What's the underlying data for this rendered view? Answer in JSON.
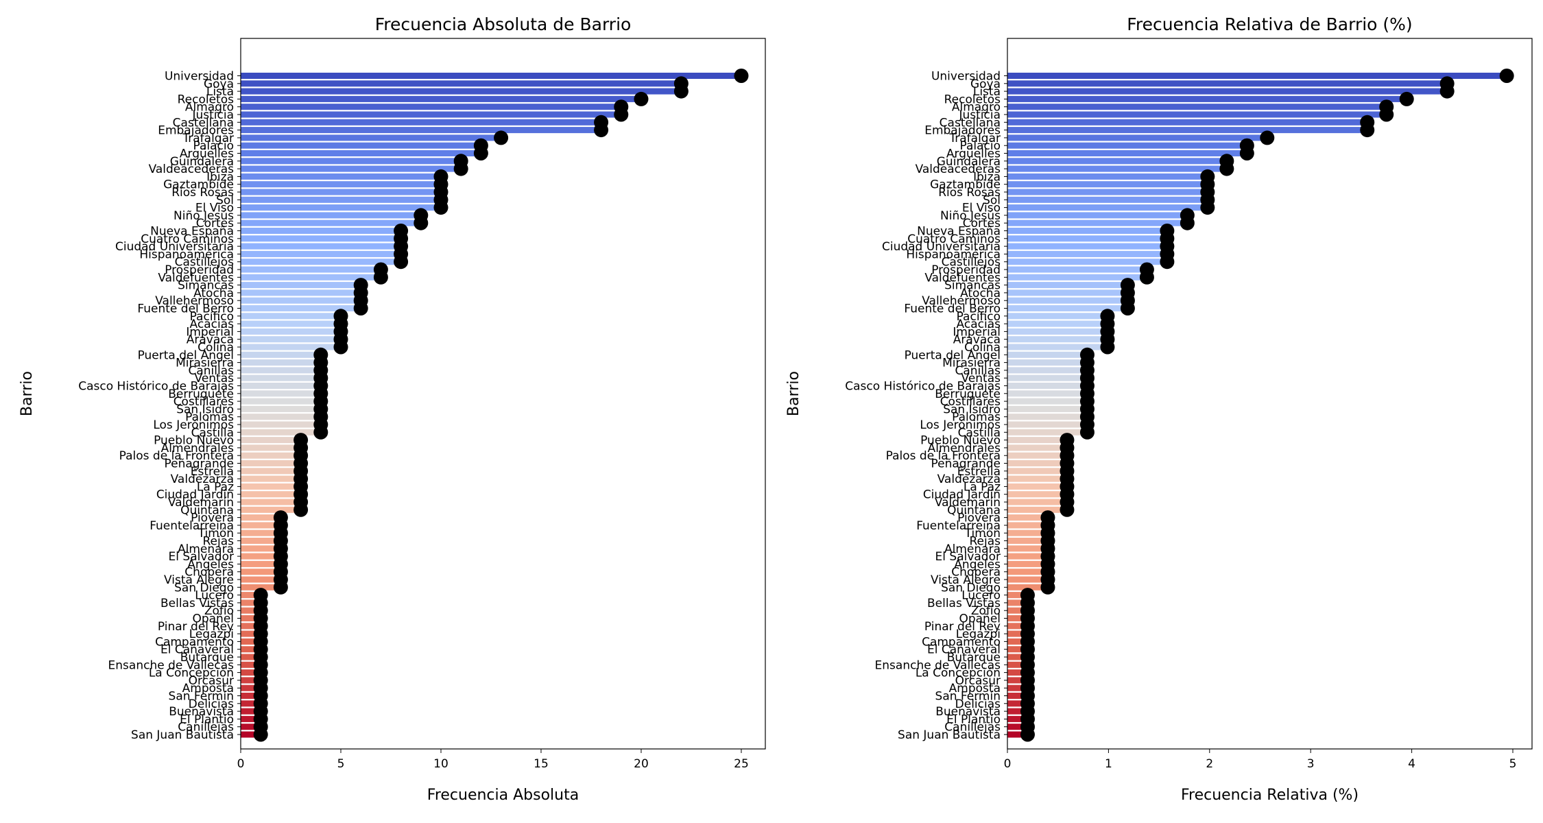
{
  "chart_data": [
    {
      "type": "bar",
      "orientation": "horizontal",
      "marker": "lollipop",
      "title": "Frecuencia Absoluta de Barrio",
      "xlabel": "Frecuencia Absoluta",
      "ylabel": "Barrio",
      "xlim": [
        0,
        26.2
      ],
      "xticks": [
        0,
        5,
        10,
        15,
        20,
        25
      ],
      "tick_labels": [
        "0",
        "5",
        "10",
        "15",
        "20",
        "25"
      ],
      "colormap": "coolwarm",
      "grid": false,
      "categories": [
        "Universidad",
        "Goya",
        "Lista",
        "Recoletos",
        "Almagro",
        "Justicia",
        "Castellana",
        "Embajadores",
        "Trafalgar",
        "Palacio",
        "Argüelles",
        "Guindalera",
        "Valdeacederas",
        "Ibiza",
        "Gaztambide",
        "Ríos Rosas",
        "Sol",
        "El Viso",
        "Niño Jesús",
        "Cortes",
        "Nueva España",
        "Cuatro Caminos",
        "Ciudad Universitaria",
        "Hispanoamérica",
        "Castillejos",
        "Prosperidad",
        "Valdefuentes",
        "Simancas",
        "Atocha",
        "Vallehermoso",
        "Fuente del Berro",
        "Pacífico",
        "Acacias",
        "Imperial",
        "Aravaca",
        "Colina",
        "Puerta del Ángel",
        "Mirasierra",
        "Canillas",
        "Ventas",
        "Casco Histórico de Barajas",
        "Berruguete",
        "Costillares",
        "San Isidro",
        "Palomas",
        "Los Jerónimos",
        "Castilla",
        "Pueblo Nuevo",
        "Almendrales",
        "Palos de la Frontera",
        "Peñagrande",
        "Estrella",
        "Valdezarza",
        "La Paz",
        "Ciudad Jardín",
        "Valdemarín",
        "Quintana",
        "Piovera",
        "Fuentelarreina",
        "Timón",
        "Rejas",
        "Almenara",
        "El Salvador",
        "Ángeles",
        "Chopera",
        "Vista Alegre",
        "San Diego",
        "Lucero",
        "Bellas Vistas",
        "Zofío",
        "Opañel",
        "Pinar del Rey",
        "Legazpi",
        "Campamento",
        "El Cañaveral",
        "Butarque",
        "Ensanche de Vallecas",
        "La Concepción",
        "Orcasur",
        "Amposta",
        "San Fermín",
        "Delicias",
        "Buenavista",
        "El Plantío",
        "Canillejas",
        "San Juan Bautista"
      ],
      "values": [
        25,
        22,
        22,
        20,
        19,
        19,
        18,
        18,
        13,
        12,
        12,
        11,
        11,
        10,
        10,
        10,
        10,
        10,
        9,
        9,
        8,
        8,
        8,
        8,
        8,
        7,
        7,
        6,
        6,
        6,
        6,
        5,
        5,
        5,
        5,
        5,
        4,
        4,
        4,
        4,
        4,
        4,
        4,
        4,
        4,
        4,
        4,
        3,
        3,
        3,
        3,
        3,
        3,
        3,
        3,
        3,
        3,
        2,
        2,
        2,
        2,
        2,
        2,
        2,
        2,
        2,
        2,
        1,
        1,
        1,
        1,
        1,
        1,
        1,
        1,
        1,
        1,
        1,
        1,
        1,
        1,
        1,
        1,
        1,
        1,
        1
      ]
    },
    {
      "type": "bar",
      "orientation": "horizontal",
      "marker": "lollipop",
      "title": "Frecuencia Relativa de Barrio (%)",
      "xlabel": "Frecuencia Relativa (%)",
      "ylabel": "Barrio",
      "xlim": [
        0,
        5.19
      ],
      "xticks": [
        0,
        1,
        2,
        3,
        4,
        5
      ],
      "tick_labels": [
        "0",
        "1",
        "2",
        "3",
        "4",
        "5"
      ],
      "colormap": "coolwarm",
      "grid": false,
      "categories": [
        "Universidad",
        "Goya",
        "Lista",
        "Recoletos",
        "Almagro",
        "Justicia",
        "Castellana",
        "Embajadores",
        "Trafalgar",
        "Palacio",
        "Argüelles",
        "Guindalera",
        "Valdeacederas",
        "Ibiza",
        "Gaztambide",
        "Ríos Rosas",
        "Sol",
        "El Viso",
        "Niño Jesús",
        "Cortes",
        "Nueva España",
        "Cuatro Caminos",
        "Ciudad Universitaria",
        "Hispanoamérica",
        "Castillejos",
        "Prosperidad",
        "Valdefuentes",
        "Simancas",
        "Atocha",
        "Vallehermoso",
        "Fuente del Berro",
        "Pacífico",
        "Acacias",
        "Imperial",
        "Aravaca",
        "Colina",
        "Puerta del Ángel",
        "Mirasierra",
        "Canillas",
        "Ventas",
        "Casco Histórico de Barajas",
        "Berruguete",
        "Costillares",
        "San Isidro",
        "Palomas",
        "Los Jerónimos",
        "Castilla",
        "Pueblo Nuevo",
        "Almendrales",
        "Palos de la Frontera",
        "Peñagrande",
        "Estrella",
        "Valdezarza",
        "La Paz",
        "Ciudad Jardín",
        "Valdemarín",
        "Quintana",
        "Piovera",
        "Fuentelarreina",
        "Timón",
        "Rejas",
        "Almenara",
        "El Salvador",
        "Ángeles",
        "Chopera",
        "Vista Alegre",
        "San Diego",
        "Lucero",
        "Bellas Vistas",
        "Zofío",
        "Opañel",
        "Pinar del Rey",
        "Legazpi",
        "Campamento",
        "El Cañaveral",
        "Butarque",
        "Ensanche de Vallecas",
        "La Concepción",
        "Orcasur",
        "Amposta",
        "San Fermín",
        "Delicias",
        "Buenavista",
        "El Plantío",
        "Canillejas",
        "San Juan Bautista"
      ],
      "values": [
        4.94,
        4.35,
        4.35,
        3.95,
        3.75,
        3.75,
        3.56,
        3.56,
        2.57,
        2.37,
        2.37,
        2.17,
        2.17,
        1.98,
        1.98,
        1.98,
        1.98,
        1.98,
        1.78,
        1.78,
        1.58,
        1.58,
        1.58,
        1.58,
        1.58,
        1.38,
        1.38,
        1.19,
        1.19,
        1.19,
        1.19,
        0.99,
        0.99,
        0.99,
        0.99,
        0.99,
        0.79,
        0.79,
        0.79,
        0.79,
        0.79,
        0.79,
        0.79,
        0.79,
        0.79,
        0.79,
        0.79,
        0.59,
        0.59,
        0.59,
        0.59,
        0.59,
        0.59,
        0.59,
        0.59,
        0.59,
        0.59,
        0.4,
        0.4,
        0.4,
        0.4,
        0.4,
        0.4,
        0.4,
        0.4,
        0.4,
        0.4,
        0.2,
        0.2,
        0.2,
        0.2,
        0.2,
        0.2,
        0.2,
        0.2,
        0.2,
        0.2,
        0.2,
        0.2,
        0.2,
        0.2,
        0.2,
        0.2,
        0.2,
        0.2,
        0.2
      ]
    }
  ]
}
